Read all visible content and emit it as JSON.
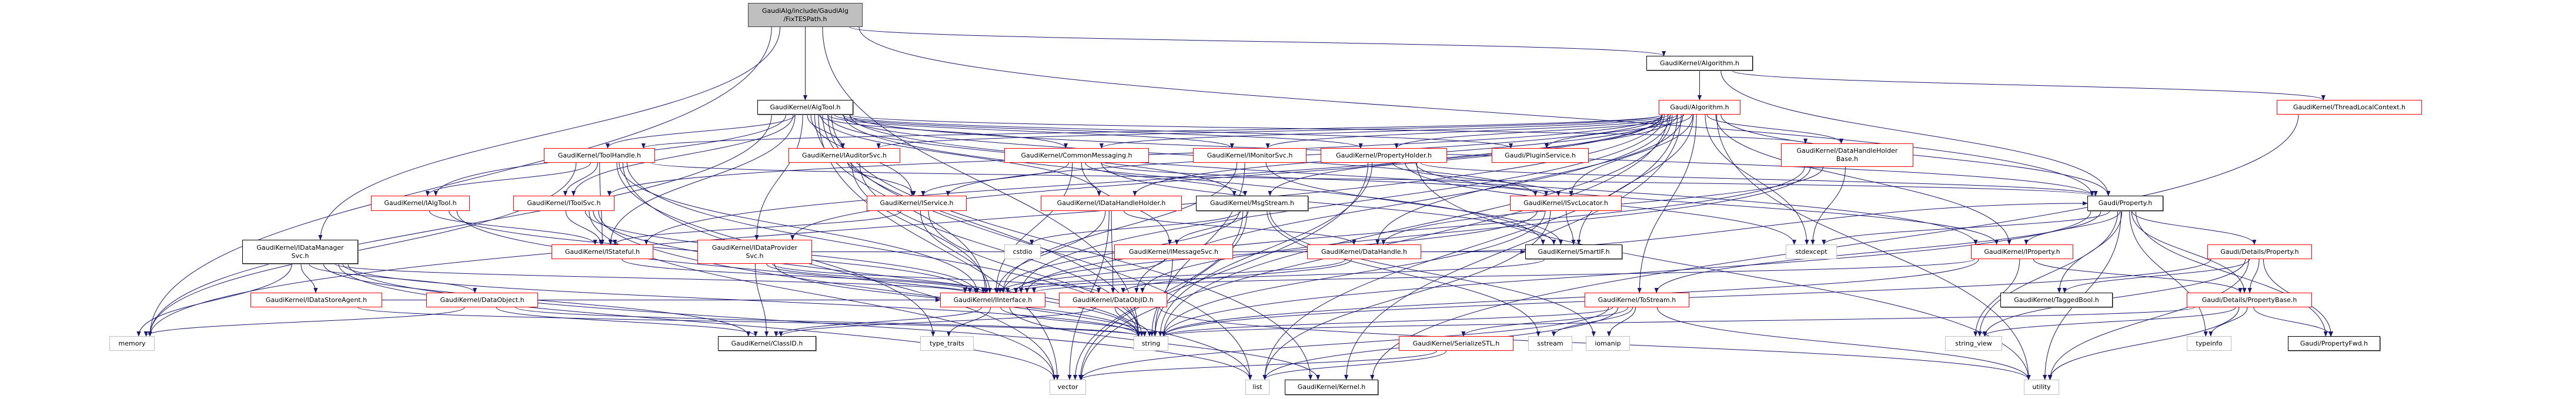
{
  "colors": {
    "edge": "#191970",
    "linked_border": "#ff0000",
    "plain_border": "#000000",
    "system_border": "#bfbfbf",
    "root_fill": "#bfbfbf"
  },
  "nodes": [
    {
      "label": "GaudiAlg/include/GaudiAlg\n/FixTESPath.h",
      "kind": "root"
    },
    {
      "label": "GaudiKernel/AlgTool.h",
      "kind": "plain"
    },
    {
      "label": "GaudiKernel/Algorithm.h",
      "kind": "plain"
    },
    {
      "label": "Gaudi/Algorithm.h",
      "kind": "truncated"
    },
    {
      "label": "GaudiKernel/ThreadLocalContext.h",
      "kind": "truncated"
    },
    {
      "label": "GaudiKernel/ToolHandle.h",
      "kind": "truncated"
    },
    {
      "label": "GaudiKernel/IAuditorSvc.h",
      "kind": "truncated"
    },
    {
      "label": "GaudiKernel/CommonMessaging.h",
      "kind": "truncated"
    },
    {
      "label": "GaudiKernel/IMonitorSvc.h",
      "kind": "truncated"
    },
    {
      "label": "GaudiKernel/PropertyHolder.h",
      "kind": "truncated"
    },
    {
      "label": "Gaudi/PluginService.h",
      "kind": "truncated"
    },
    {
      "label": "GaudiKernel/DataHandleHolder\nBase.h",
      "kind": "truncated"
    },
    {
      "label": "GaudiKernel/IAlgTool.h",
      "kind": "truncated"
    },
    {
      "label": "GaudiKernel/IToolSvc.h",
      "kind": "truncated"
    },
    {
      "label": "GaudiKernel/IService.h",
      "kind": "truncated"
    },
    {
      "label": "GaudiKernel/IDataHandleHolder.h",
      "kind": "truncated"
    },
    {
      "label": "GaudiKernel/MsgStream.h",
      "kind": "plain"
    },
    {
      "label": "GaudiKernel/ISvcLocator.h",
      "kind": "truncated"
    },
    {
      "label": "Gaudi/Property.h",
      "kind": "plain"
    },
    {
      "label": "GaudiKernel/IDataManager\nSvc.h",
      "kind": "plain"
    },
    {
      "label": "GaudiKernel/IDataProvider\nSvc.h",
      "kind": "truncated"
    },
    {
      "label": "GaudiKernel/IStateful.h",
      "kind": "truncated"
    },
    {
      "label": "cstdio",
      "kind": "system"
    },
    {
      "label": "GaudiKernel/IMessageSvc.h",
      "kind": "truncated"
    },
    {
      "label": "GaudiKernel/DataHandle.h",
      "kind": "truncated"
    },
    {
      "label": "GaudiKernel/SmartIF.h",
      "kind": "plain"
    },
    {
      "label": "stdexcept",
      "kind": "system"
    },
    {
      "label": "GaudiKernel/IProperty.h",
      "kind": "truncated"
    },
    {
      "label": "Gaudi/Details/Property.h",
      "kind": "truncated"
    },
    {
      "label": "GaudiKernel/IDataStoreAgent.h",
      "kind": "truncated"
    },
    {
      "label": "GaudiKernel/DataObject.h",
      "kind": "truncated"
    },
    {
      "label": "GaudiKernel/IInterface.h",
      "kind": "truncated"
    },
    {
      "label": "GaudiKernel/DataObjID.h",
      "kind": "truncated"
    },
    {
      "label": "GaudiKernel/ToStream.h",
      "kind": "truncated"
    },
    {
      "label": "GaudiKernel/TaggedBool.h",
      "kind": "plain"
    },
    {
      "label": "Gaudi/Details/PropertyBase.h",
      "kind": "truncated"
    },
    {
      "label": "memory",
      "kind": "system"
    },
    {
      "label": "GaudiKernel/ClassID.h",
      "kind": "plain"
    },
    {
      "label": "type_traits",
      "kind": "system"
    },
    {
      "label": "string",
      "kind": "system"
    },
    {
      "label": "GaudiKernel/SerializeSTL.h",
      "kind": "truncated"
    },
    {
      "label": "sstream",
      "kind": "system"
    },
    {
      "label": "iomanip",
      "kind": "system"
    },
    {
      "label": "string_view",
      "kind": "system"
    },
    {
      "label": "typeinfo",
      "kind": "system"
    },
    {
      "label": "Gaudi/PropertyFwd.h",
      "kind": "plain"
    },
    {
      "label": "vector",
      "kind": "system"
    },
    {
      "label": "list",
      "kind": "system"
    },
    {
      "label": "GaudiKernel/Kernel.h",
      "kind": "plain"
    },
    {
      "label": "utility",
      "kind": "system"
    }
  ],
  "edges": [
    [
      0,
      1
    ],
    [
      0,
      2
    ],
    [
      0,
      19
    ],
    [
      0,
      18
    ],
    [
      0,
      36
    ],
    [
      0,
      39
    ],
    [
      2,
      3
    ],
    [
      2,
      4
    ],
    [
      2,
      18
    ],
    [
      1,
      5
    ],
    [
      1,
      12
    ],
    [
      1,
      13
    ],
    [
      1,
      6
    ],
    [
      1,
      7
    ],
    [
      1,
      8
    ],
    [
      1,
      14
    ],
    [
      1,
      15
    ],
    [
      1,
      16
    ],
    [
      1,
      20
    ],
    [
      1,
      21
    ],
    [
      1,
      9
    ],
    [
      1,
      10
    ],
    [
      1,
      17
    ],
    [
      1,
      11
    ],
    [
      1,
      18
    ],
    [
      1,
      31
    ],
    [
      1,
      36
    ],
    [
      1,
      46
    ],
    [
      1,
      47
    ],
    [
      1,
      39
    ],
    [
      1,
      48
    ],
    [
      1,
      27
    ],
    [
      1,
      25
    ],
    [
      3,
      9
    ],
    [
      3,
      10
    ],
    [
      3,
      11
    ],
    [
      3,
      17
    ],
    [
      3,
      14
    ],
    [
      3,
      7
    ],
    [
      3,
      8
    ],
    [
      3,
      6
    ],
    [
      3,
      5
    ],
    [
      3,
      20
    ],
    [
      3,
      16
    ],
    [
      3,
      27
    ],
    [
      3,
      18
    ],
    [
      3,
      25
    ],
    [
      3,
      26
    ],
    [
      3,
      33
    ],
    [
      3,
      39
    ],
    [
      3,
      46
    ],
    [
      3,
      47
    ],
    [
      3,
      48
    ],
    [
      3,
      49
    ],
    [
      3,
      36
    ],
    [
      3,
      32
    ],
    [
      3,
      31
    ],
    [
      3,
      21
    ],
    [
      3,
      15
    ],
    [
      3,
      24
    ],
    [
      3,
      13
    ],
    [
      5,
      12
    ],
    [
      5,
      13
    ],
    [
      5,
      21
    ],
    [
      5,
      31
    ],
    [
      5,
      39
    ],
    [
      5,
      46
    ],
    [
      5,
      36
    ],
    [
      5,
      38
    ],
    [
      5,
      18
    ],
    [
      12,
      21
    ],
    [
      12,
      31
    ],
    [
      12,
      39
    ],
    [
      13,
      21
    ],
    [
      13,
      31
    ],
    [
      13,
      39
    ],
    [
      13,
      47
    ],
    [
      13,
      46
    ],
    [
      6,
      14
    ],
    [
      6,
      31
    ],
    [
      6,
      39
    ],
    [
      7,
      14
    ],
    [
      7,
      16
    ],
    [
      7,
      23
    ],
    [
      7,
      17
    ],
    [
      7,
      25
    ],
    [
      7,
      31
    ],
    [
      8,
      31
    ],
    [
      8,
      39
    ],
    [
      8,
      25
    ],
    [
      14,
      21
    ],
    [
      14,
      31
    ],
    [
      14,
      39
    ],
    [
      15,
      24
    ],
    [
      15,
      32
    ],
    [
      15,
      31
    ],
    [
      15,
      46
    ],
    [
      16,
      23
    ],
    [
      16,
      31
    ],
    [
      16,
      22
    ],
    [
      16,
      39
    ],
    [
      16,
      42
    ],
    [
      16,
      41
    ],
    [
      16,
      46
    ],
    [
      20,
      32
    ],
    [
      20,
      31
    ],
    [
      20,
      37
    ],
    [
      20,
      39
    ],
    [
      20,
      25
    ],
    [
      21,
      31
    ],
    [
      23,
      31
    ],
    [
      23,
      39
    ],
    [
      24,
      32
    ],
    [
      24,
      31
    ],
    [
      24,
      18
    ],
    [
      32,
      39
    ],
    [
      32,
      37
    ],
    [
      32,
      49
    ],
    [
      31,
      38
    ],
    [
      31,
      48
    ],
    [
      31,
      37
    ],
    [
      31,
      39
    ],
    [
      19,
      29
    ],
    [
      19,
      30
    ],
    [
      19,
      31
    ],
    [
      19,
      37
    ],
    [
      19,
      39
    ],
    [
      19,
      46
    ],
    [
      19,
      47
    ],
    [
      19,
      36
    ],
    [
      30,
      36
    ],
    [
      30,
      37
    ],
    [
      30,
      39
    ],
    [
      29,
      31
    ],
    [
      29,
      39
    ],
    [
      9,
      17
    ],
    [
      9,
      27
    ],
    [
      9,
      18
    ],
    [
      9,
      39
    ],
    [
      9,
      46
    ],
    [
      9,
      49
    ],
    [
      9,
      26
    ],
    [
      17,
      25
    ],
    [
      17,
      31
    ],
    [
      17,
      39
    ],
    [
      17,
      47
    ],
    [
      25,
      31
    ],
    [
      33,
      40
    ],
    [
      33,
      41
    ],
    [
      33,
      42
    ],
    [
      33,
      39
    ],
    [
      33,
      46
    ],
    [
      33,
      47
    ],
    [
      33,
      49
    ],
    [
      40,
      46
    ],
    [
      40,
      47
    ],
    [
      18,
      27
    ],
    [
      18,
      28
    ],
    [
      18,
      35
    ],
    [
      18,
      34
    ],
    [
      18,
      43
    ],
    [
      18,
      44
    ],
    [
      18,
      45
    ],
    [
      18,
      49
    ],
    [
      18,
      39
    ],
    [
      18,
      33
    ],
    [
      18,
      26
    ],
    [
      27,
      35
    ],
    [
      27,
      43
    ],
    [
      27,
      39
    ],
    [
      27,
      31
    ],
    [
      28,
      35
    ],
    [
      28,
      45
    ],
    [
      28,
      34
    ],
    [
      28,
      39
    ],
    [
      28,
      49
    ],
    [
      28,
      43
    ],
    [
      35,
      44
    ],
    [
      35,
      43
    ],
    [
      35,
      45
    ],
    [
      35,
      49
    ],
    [
      35,
      39
    ],
    [
      4,
      48
    ],
    [
      11,
      24
    ],
    [
      11,
      32
    ],
    [
      11,
      31
    ],
    [
      11,
      26
    ]
  ]
}
